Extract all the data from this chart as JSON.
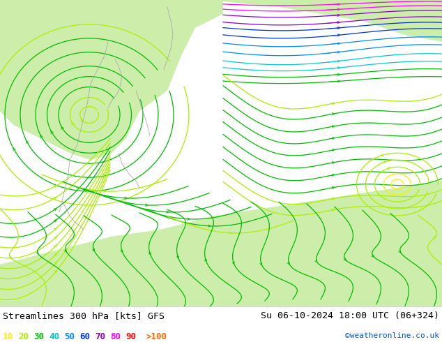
{
  "title_left": "Streamlines 300 hPa [kts] GFS",
  "title_right": "Su 06-10-2024 18:00 UTC (06+324)",
  "credit": "©weatheronline.co.uk",
  "legend_values": [
    "10",
    "20",
    "30",
    "40",
    "50",
    "60",
    "70",
    "80",
    "90",
    ">100"
  ],
  "legend_colors": [
    "#ffff00",
    "#aaff00",
    "#00bb00",
    "#00dddd",
    "#00aaff",
    "#0000ff",
    "#8800ff",
    "#ff00ff",
    "#ff0000",
    "#ff6600"
  ],
  "map_bg": "#e0e0e0",
  "land_green_light": "#cceeaa",
  "land_green_mid": "#aaddaa",
  "border_color": "#000000",
  "text_color": "#000000",
  "title_fontsize": 10,
  "legend_fontsize": 9,
  "figwidth": 6.34,
  "figheight": 4.9,
  "dpi": 100,
  "speed_color_map": {
    "10": "#ffee00",
    "20": "#aaee00",
    "30": "#00bb00",
    "40": "#00cccc",
    "50": "#0088ff",
    "60": "#0000dd",
    "70": "#8800cc",
    "80": "#ff00ff",
    "90": "#ff0000",
    "100": "#ff6600"
  }
}
